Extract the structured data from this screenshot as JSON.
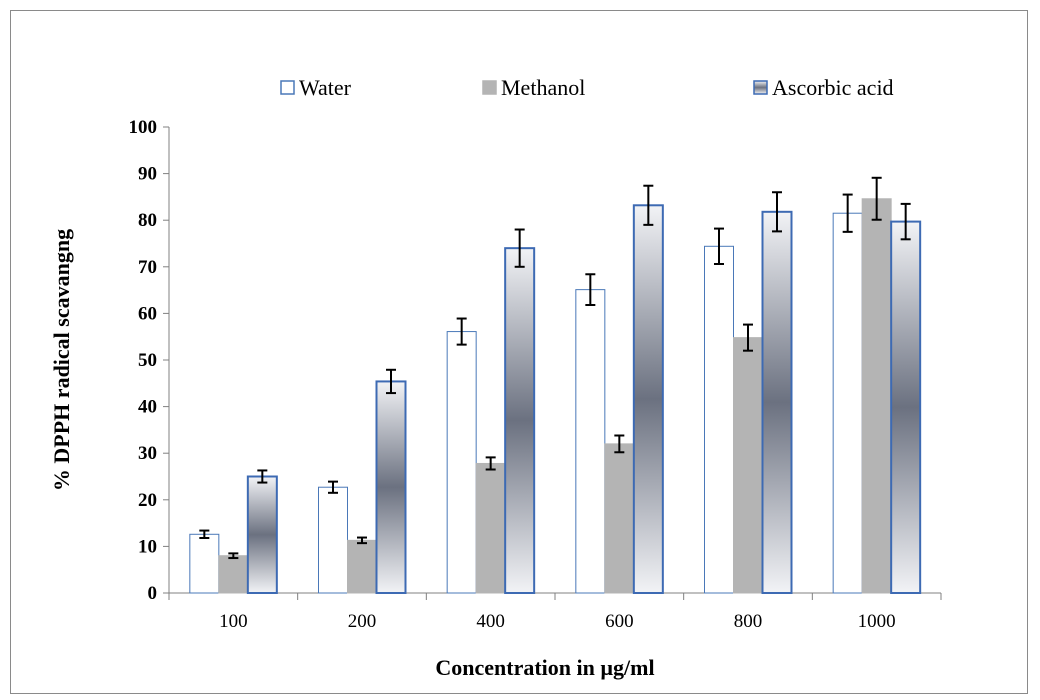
{
  "chart_data": {
    "type": "bar",
    "title": "",
    "xlabel": "Concentration in µg/ml",
    "ylabel": "% DPPH  radical scavangng",
    "ylim": [
      0,
      100
    ],
    "yticks": [
      0,
      10,
      20,
      30,
      40,
      50,
      60,
      70,
      80,
      90,
      100
    ],
    "categories": [
      "100",
      "200",
      "400",
      "600",
      "800",
      "1000"
    ],
    "legend_position": "top",
    "grid": false,
    "series": [
      {
        "name": "Water",
        "values": [
          12.6,
          22.7,
          56.1,
          65.1,
          74.4,
          81.5
        ],
        "errors": [
          0.8,
          1.2,
          2.8,
          3.3,
          3.8,
          4.0
        ],
        "fill": "#ffffff",
        "stroke": "#4a78b8"
      },
      {
        "name": "Methanol",
        "values": [
          8.0,
          11.3,
          27.8,
          32.0,
          54.8,
          84.6
        ],
        "errors": [
          0.5,
          0.6,
          1.3,
          1.8,
          2.8,
          4.5
        ],
        "fill": "#b4b4b4",
        "stroke": "#b4b4b4"
      },
      {
        "name": "Ascorbic acid",
        "values": [
          25.0,
          45.4,
          74.0,
          83.2,
          81.8,
          79.7
        ],
        "errors": [
          1.3,
          2.5,
          4.0,
          4.2,
          4.2,
          3.8
        ],
        "fill": "gradient",
        "stroke": "#3d6ab3"
      }
    ]
  }
}
